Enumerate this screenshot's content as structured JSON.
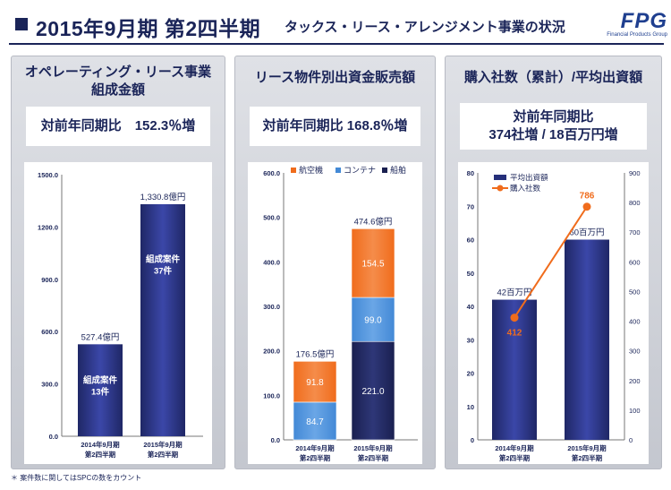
{
  "header": {
    "title": "2015年9月期 第2四半期",
    "subtitle": "タックス・リース・アレンジメント事業の状況",
    "logo": "FPG",
    "logo_sub": "Financial Products Group"
  },
  "panels": [
    {
      "title_line1": "オペレーティング・リース事業",
      "title_line2": "組成金額",
      "summary_line1": "対前年同期比　152.3％増"
    },
    {
      "title_line1": "リース物件別出資金販売額",
      "summary_line1": "対前年同期比 168.8％増"
    },
    {
      "title_line1": "購入社数（累計）/平均出資額",
      "summary_line1": "対前年同期比",
      "summary_line2": "374社増 / 18百万円増"
    }
  ],
  "chart_data": [
    {
      "type": "bar",
      "categories": [
        [
          "2014年9月期",
          "第2四半期"
        ],
        [
          "2015年9月期",
          "第2四半期"
        ]
      ],
      "values": [
        527.4,
        1330.8
      ],
      "value_labels": [
        "527.4億円",
        "1,330.8億円"
      ],
      "inner_labels": [
        [
          "組成案件",
          "13件"
        ],
        [
          "組成案件",
          "37件"
        ]
      ],
      "ylim": [
        0,
        1500
      ],
      "yticks": [
        "0.0",
        "300.0",
        "600.0",
        "900.0",
        "1200.0",
        "1500.0"
      ],
      "colors": {
        "bar": "#252f7a"
      }
    },
    {
      "type": "stacked-bar",
      "categories": [
        [
          "2014年9月期",
          "第2四半期"
        ],
        [
          "2015年9月期",
          "第2四半期"
        ]
      ],
      "series": [
        {
          "name": "船舶",
          "values": [
            0,
            221.0
          ],
          "labels": [
            "",
            "221.0"
          ],
          "color": "#1a2050"
        },
        {
          "name": "コンテナ",
          "values": [
            84.7,
            99.0
          ],
          "labels": [
            "84.7",
            "99.0"
          ],
          "color": "#4389d6"
        },
        {
          "name": "航空機",
          "values": [
            91.8,
            154.5
          ],
          "labels": [
            "91.8",
            "154.5"
          ],
          "color": "#f06c1c"
        }
      ],
      "legend": [
        "航空機",
        "コンテナ",
        "船舶"
      ],
      "totals": [
        "176.5億円",
        "474.6億円"
      ],
      "ylim": [
        0,
        600
      ],
      "yticks": [
        "0.0",
        "100.0",
        "200.0",
        "300.0",
        "400.0",
        "500.0",
        "600.0"
      ]
    },
    {
      "type": "bar+line",
      "categories": [
        [
          "2014年9月期",
          "第2四半期"
        ],
        [
          "2015年9月期",
          "第2四半期"
        ]
      ],
      "bar_series": {
        "name": "平均出資額",
        "values": [
          42,
          60
        ],
        "labels": [
          "42百万円",
          "60百万円"
        ],
        "color": "#252f7a"
      },
      "line_series": {
        "name": "購入社数",
        "values": [
          412,
          786
        ],
        "labels": [
          "412",
          "786"
        ],
        "color": "#f06c1c"
      },
      "ylim_left": [
        0,
        80
      ],
      "yticks_left": [
        "0",
        "10",
        "20",
        "30",
        "40",
        "50",
        "60",
        "70",
        "80"
      ],
      "ylim_right": [
        0,
        900
      ],
      "yticks_right": [
        "0",
        "100",
        "200",
        "300",
        "400",
        "500",
        "600",
        "700",
        "800",
        "900"
      ]
    }
  ],
  "footnote": "＊ 案件数に関してはSPCの数をカウント"
}
